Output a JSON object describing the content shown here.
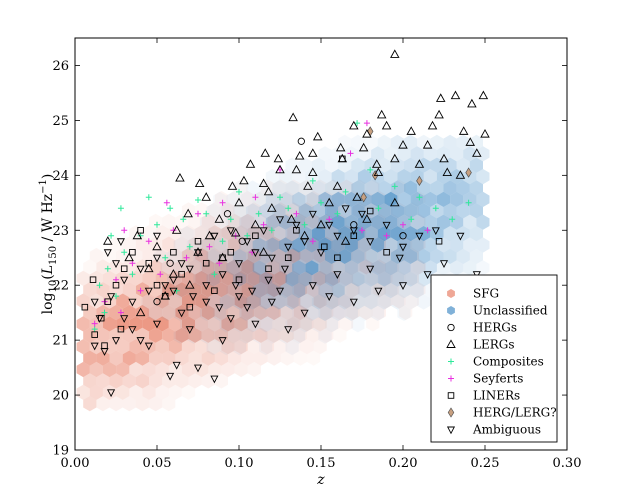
{
  "chart_data": {
    "type": "scatter",
    "xlabel": "z",
    "ylabel": "log10(L150 / W Hz−1)",
    "ylabel_parts": {
      "prefix": "log",
      "log_sub": "10",
      "L": "L",
      "L_sub": "150",
      "unit": " / W Hz",
      "exp": "−1",
      "close": ")"
    },
    "xlim": [
      0.0,
      0.3
    ],
    "ylim": [
      19,
      26.5
    ],
    "xticks": [
      "0.00",
      "0.05",
      "0.10",
      "0.15",
      "0.20",
      "0.25",
      "0.30"
    ],
    "yticks": [
      "19",
      "20",
      "21",
      "22",
      "23",
      "24",
      "25",
      "26"
    ],
    "grid": false,
    "legend_position": "lower-right",
    "colors": {
      "SFG": "#e8826a",
      "Unclassified": "#4a90c8",
      "Composites": "#2ee89a",
      "Seyferts": "#e830e0",
      "HERG_LERG": "#c8a080"
    },
    "series": [
      {
        "name": "SFG",
        "marker": "hexbin",
        "color": "#e8826a",
        "extent": {
          "x": [
            0.005,
            0.21
          ],
          "y": [
            19.8,
            24.2
          ]
        }
      },
      {
        "name": "Unclassified",
        "marker": "hexbin",
        "color": "#4a90c8",
        "extent": {
          "x": [
            0.02,
            0.25
          ],
          "y": [
            20.0,
            24.6
          ]
        }
      },
      {
        "name": "HERGs",
        "marker": "circle",
        "points": [
          [
            0.093,
            23.3
          ],
          [
            0.138,
            24.62
          ],
          [
            0.058,
            22.4
          ],
          [
            0.102,
            22.8
          ],
          [
            0.17,
            23.1
          ],
          [
            0.05,
            21.7
          ],
          [
            0.2,
            22.9
          ]
        ]
      },
      {
        "name": "LERGs",
        "marker": "triangle-up",
        "points": [
          [
            0.195,
            26.2
          ],
          [
            0.232,
            25.45
          ],
          [
            0.223,
            25.4
          ],
          [
            0.249,
            25.45
          ],
          [
            0.242,
            25.3
          ],
          [
            0.222,
            25.1
          ],
          [
            0.187,
            25.1
          ],
          [
            0.19,
            24.9
          ],
          [
            0.133,
            25.05
          ],
          [
            0.218,
            24.9
          ],
          [
            0.237,
            24.8
          ],
          [
            0.25,
            24.75
          ],
          [
            0.205,
            24.8
          ],
          [
            0.17,
            24.9
          ],
          [
            0.178,
            24.75
          ],
          [
            0.148,
            24.7
          ],
          [
            0.162,
            24.5
          ],
          [
            0.2,
            24.55
          ],
          [
            0.215,
            24.55
          ],
          [
            0.241,
            24.6
          ],
          [
            0.176,
            24.5
          ],
          [
            0.245,
            24.4
          ],
          [
            0.225,
            24.3
          ],
          [
            0.195,
            24.3
          ],
          [
            0.21,
            24.2
          ],
          [
            0.184,
            24.2
          ],
          [
            0.163,
            24.3
          ],
          [
            0.137,
            24.35
          ],
          [
            0.145,
            24.4
          ],
          [
            0.116,
            24.4
          ],
          [
            0.124,
            24.3
          ],
          [
            0.107,
            24.2
          ],
          [
            0.125,
            24.1
          ],
          [
            0.135,
            24.1
          ],
          [
            0.145,
            24.05
          ],
          [
            0.185,
            24.05
          ],
          [
            0.235,
            24.0
          ],
          [
            0.227,
            24.05
          ],
          [
            0.115,
            23.85
          ],
          [
            0.096,
            23.8
          ],
          [
            0.064,
            23.95
          ],
          [
            0.076,
            23.85
          ],
          [
            0.103,
            23.9
          ],
          [
            0.118,
            23.7
          ],
          [
            0.142,
            23.8
          ],
          [
            0.16,
            23.8
          ],
          [
            0.08,
            23.6
          ],
          [
            0.1,
            23.5
          ],
          [
            0.12,
            23.4
          ],
          [
            0.155,
            23.5
          ],
          [
            0.172,
            23.6
          ],
          [
            0.195,
            23.5
          ],
          [
            0.069,
            23.3
          ],
          [
            0.088,
            23.2
          ],
          [
            0.11,
            23.1
          ],
          [
            0.132,
            23.2
          ],
          [
            0.15,
            23.1
          ],
          [
            0.178,
            23.2
          ],
          [
            0.062,
            23.0
          ],
          [
            0.082,
            22.9
          ],
          [
            0.098,
            22.95
          ],
          [
            0.14,
            22.9
          ],
          [
            0.165,
            22.8
          ],
          [
            0.038,
            22.9
          ],
          [
            0.05,
            22.7
          ],
          [
            0.075,
            22.6
          ],
          [
            0.09,
            22.5
          ],
          [
            0.115,
            22.6
          ],
          [
            0.02,
            22.8
          ],
          [
            0.033,
            22.5
          ],
          [
            0.045,
            22.3
          ],
          [
            0.06,
            22.2
          ],
          [
            0.07,
            22.0
          ],
          [
            0.055,
            21.8
          ],
          [
            0.04,
            21.5
          ]
        ]
      },
      {
        "name": "Composites",
        "marker": "plus",
        "points": [
          [
            0.172,
            24.95
          ],
          [
            0.18,
            24.1
          ],
          [
            0.24,
            23.5
          ],
          [
            0.23,
            23.2
          ],
          [
            0.21,
            23.6
          ],
          [
            0.195,
            23.8
          ],
          [
            0.165,
            23.7
          ],
          [
            0.15,
            23.5
          ],
          [
            0.13,
            23.4
          ],
          [
            0.112,
            23.3
          ],
          [
            0.095,
            23.2
          ],
          [
            0.08,
            23.3
          ],
          [
            0.066,
            23.2
          ],
          [
            0.05,
            23.1
          ],
          [
            0.04,
            22.9
          ],
          [
            0.03,
            22.6
          ],
          [
            0.02,
            22.3
          ],
          [
            0.015,
            22.0
          ],
          [
            0.025,
            21.8
          ],
          [
            0.035,
            22.2
          ],
          [
            0.055,
            22.5
          ],
          [
            0.07,
            22.7
          ],
          [
            0.09,
            22.8
          ],
          [
            0.105,
            22.9
          ],
          [
            0.12,
            23.0
          ],
          [
            0.14,
            23.1
          ],
          [
            0.16,
            23.3
          ],
          [
            0.185,
            23.4
          ],
          [
            0.205,
            23.2
          ],
          [
            0.22,
            23.4
          ],
          [
            0.045,
            23.6
          ],
          [
            0.058,
            23.4
          ],
          [
            0.075,
            23.55
          ],
          [
            0.1,
            23.7
          ],
          [
            0.125,
            23.6
          ],
          [
            0.145,
            23.9
          ],
          [
            0.028,
            23.4
          ],
          [
            0.018,
            21.5
          ],
          [
            0.012,
            21.2
          ],
          [
            0.022,
            22.9
          ],
          [
            0.062,
            21.9
          ],
          [
            0.085,
            22.2
          ]
        ]
      },
      {
        "name": "Seyferts",
        "marker": "plus",
        "points": [
          [
            0.178,
            24.95
          ],
          [
            0.168,
            24.4
          ],
          [
            0.125,
            24.1
          ],
          [
            0.11,
            23.6
          ],
          [
            0.09,
            23.5
          ],
          [
            0.075,
            23.3
          ],
          [
            0.06,
            23.0
          ],
          [
            0.045,
            22.8
          ],
          [
            0.035,
            22.4
          ],
          [
            0.025,
            22.1
          ],
          [
            0.018,
            21.7
          ],
          [
            0.012,
            21.3
          ],
          [
            0.028,
            21.5
          ],
          [
            0.04,
            21.9
          ],
          [
            0.052,
            22.2
          ],
          [
            0.068,
            22.5
          ],
          [
            0.082,
            22.7
          ],
          [
            0.098,
            22.9
          ],
          [
            0.115,
            23.1
          ],
          [
            0.135,
            23.3
          ],
          [
            0.155,
            23.2
          ],
          [
            0.175,
            23.0
          ],
          [
            0.19,
            22.9
          ],
          [
            0.2,
            23.1
          ],
          [
            0.215,
            23.0
          ],
          [
            0.03,
            23.0
          ],
          [
            0.056,
            23.5
          ],
          [
            0.088,
            22.4
          ],
          [
            0.108,
            22.6
          ],
          [
            0.145,
            22.8
          ]
        ]
      },
      {
        "name": "LINERs",
        "marker": "square",
        "points": [
          [
            0.163,
            24.3
          ],
          [
            0.18,
            23.35
          ],
          [
            0.222,
            22.8
          ],
          [
            0.19,
            22.6
          ],
          [
            0.17,
            22.9
          ],
          [
            0.152,
            22.7
          ],
          [
            0.13,
            22.5
          ],
          [
            0.118,
            22.3
          ],
          [
            0.1,
            22.1
          ],
          [
            0.085,
            21.9
          ],
          [
            0.07,
            21.6
          ],
          [
            0.055,
            21.8
          ],
          [
            0.04,
            23.0
          ],
          [
            0.035,
            22.6
          ],
          [
            0.03,
            22.3
          ],
          [
            0.025,
            22.0
          ],
          [
            0.02,
            21.7
          ],
          [
            0.016,
            21.4
          ],
          [
            0.012,
            21.1
          ],
          [
            0.018,
            20.9
          ],
          [
            0.028,
            21.2
          ],
          [
            0.045,
            22.4
          ],
          [
            0.06,
            22.6
          ],
          [
            0.075,
            22.8
          ],
          [
            0.09,
            22.5
          ],
          [
            0.11,
            22.9
          ],
          [
            0.135,
            23.0
          ],
          [
            0.16,
            22.5
          ],
          [
            0.006,
            21.6
          ],
          [
            0.011,
            22.1
          ],
          [
            0.05,
            22.0
          ],
          [
            0.065,
            22.2
          ],
          [
            0.08,
            22.4
          ],
          [
            0.095,
            22.6
          ]
        ]
      },
      {
        "name": "HERG/LERG?",
        "marker": "diamond",
        "points": [
          [
            0.18,
            24.8
          ],
          [
            0.183,
            24.0
          ],
          [
            0.24,
            24.05
          ],
          [
            0.176,
            23.6
          ],
          [
            0.21,
            23.9
          ]
        ]
      },
      {
        "name": "Ambiguous",
        "marker": "triangle-down",
        "points": [
          [
            0.022,
            20.05
          ],
          [
            0.045,
            20.9
          ],
          [
            0.062,
            20.55
          ],
          [
            0.075,
            20.5
          ],
          [
            0.058,
            20.35
          ],
          [
            0.085,
            20.3
          ],
          [
            0.09,
            21.0
          ],
          [
            0.07,
            21.2
          ],
          [
            0.095,
            21.4
          ],
          [
            0.11,
            21.3
          ],
          [
            0.13,
            21.2
          ],
          [
            0.105,
            21.6
          ],
          [
            0.12,
            21.7
          ],
          [
            0.14,
            21.5
          ],
          [
            0.155,
            21.8
          ],
          [
            0.17,
            21.7
          ],
          [
            0.185,
            21.9
          ],
          [
            0.2,
            22.0
          ],
          [
            0.215,
            22.2
          ],
          [
            0.225,
            22.4
          ],
          [
            0.245,
            22.2
          ],
          [
            0.198,
            22.5
          ],
          [
            0.18,
            22.3
          ],
          [
            0.16,
            22.2
          ],
          [
            0.145,
            22.0
          ],
          [
            0.125,
            21.9
          ],
          [
            0.1,
            21.8
          ],
          [
            0.08,
            21.7
          ],
          [
            0.065,
            21.5
          ],
          [
            0.05,
            21.3
          ],
          [
            0.035,
            21.2
          ],
          [
            0.025,
            21.0
          ],
          [
            0.018,
            20.8
          ],
          [
            0.012,
            20.9
          ],
          [
            0.015,
            21.4
          ],
          [
            0.022,
            21.8
          ],
          [
            0.03,
            22.1
          ],
          [
            0.04,
            22.3
          ],
          [
            0.05,
            22.5
          ],
          [
            0.06,
            22.1
          ],
          [
            0.07,
            22.3
          ],
          [
            0.08,
            22.0
          ],
          [
            0.09,
            22.2
          ],
          [
            0.1,
            22.4
          ],
          [
            0.11,
            22.6
          ],
          [
            0.12,
            22.5
          ],
          [
            0.13,
            22.7
          ],
          [
            0.14,
            22.8
          ],
          [
            0.15,
            22.6
          ],
          [
            0.16,
            22.9
          ],
          [
            0.17,
            23.0
          ],
          [
            0.18,
            22.8
          ],
          [
            0.19,
            23.1
          ],
          [
            0.2,
            22.7
          ],
          [
            0.21,
            22.9
          ],
          [
            0.22,
            23.0
          ],
          [
            0.235,
            22.9
          ],
          [
            0.025,
            22.4
          ],
          [
            0.035,
            21.7
          ],
          [
            0.045,
            21.9
          ],
          [
            0.055,
            22.0
          ],
          [
            0.065,
            22.4
          ],
          [
            0.075,
            22.6
          ],
          [
            0.085,
            22.9
          ],
          [
            0.095,
            23.0
          ],
          [
            0.105,
            22.8
          ],
          [
            0.115,
            23.0
          ],
          [
            0.125,
            23.2
          ],
          [
            0.135,
            23.1
          ],
          [
            0.145,
            23.3
          ],
          [
            0.155,
            23.1
          ],
          [
            0.165,
            23.4
          ],
          [
            0.175,
            23.3
          ],
          [
            0.03,
            21.4
          ],
          [
            0.04,
            21.0
          ],
          [
            0.06,
            21.9
          ],
          [
            0.072,
            21.8
          ],
          [
            0.088,
            21.6
          ],
          [
            0.098,
            22.0
          ],
          [
            0.108,
            21.9
          ],
          [
            0.118,
            22.1
          ],
          [
            0.128,
            22.3
          ],
          [
            0.02,
            22.6
          ],
          [
            0.028,
            22.8
          ],
          [
            0.05,
            22.9
          ],
          [
            0.012,
            21.7
          ]
        ]
      }
    ]
  }
}
